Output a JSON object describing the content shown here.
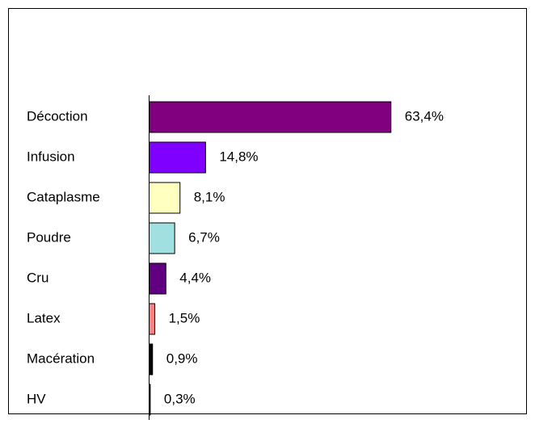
{
  "chart_data": {
    "type": "bar",
    "orientation": "horizontal",
    "categories": [
      "Décoction",
      "Infusion",
      "Cataplasme",
      "Poudre",
      "Cru",
      "Latex",
      "Macération",
      "HV"
    ],
    "values": [
      63.4,
      14.8,
      8.1,
      6.7,
      4.4,
      1.5,
      0.9,
      0.3
    ],
    "value_labels": [
      "63,4%",
      "14,8%",
      "8,1%",
      "6,7%",
      "4,4%",
      "1,5%",
      "0,9%",
      "0,3%"
    ],
    "colors": [
      "#800080",
      "#8000ff",
      "#ffffc0",
      "#a0e0e0",
      "#600080",
      "#ff8080",
      "#000000",
      "#000000"
    ]
  }
}
